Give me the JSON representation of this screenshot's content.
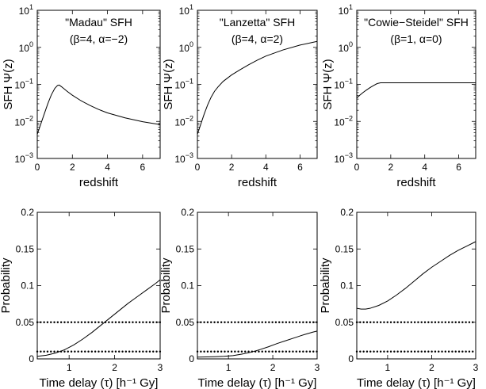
{
  "chart_data": [
    {
      "type": "line",
      "title": "\"Madau\" SFH",
      "subtitle": "(β=4, α=−2)",
      "xlabel": "redshift",
      "ylabel": "SFH Ψ(z)",
      "yscale": "log",
      "xlim": [
        0,
        7
      ],
      "ylim": [
        0.001,
        10
      ],
      "xticks": [
        0,
        2,
        4,
        6
      ],
      "xtick_labels": [
        "0",
        "2",
        "4",
        "6"
      ],
      "yticks": [
        0.001,
        0.01,
        0.1,
        1,
        10
      ],
      "ytick_labels": [
        [
          "10",
          "−3"
        ],
        [
          "10",
          "−2"
        ],
        [
          "10",
          "−1"
        ],
        [
          "10",
          "0"
        ],
        [
          "10",
          "1"
        ]
      ],
      "series": [
        {
          "name": "SFH",
          "x": [
            0,
            0.2,
            0.4,
            0.6,
            0.8,
            1.0,
            1.15,
            1.25,
            1.4,
            1.7,
            2.0,
            2.5,
            3.0,
            3.5,
            4.0,
            5.0,
            6.0,
            7.0
          ],
          "y": [
            0.0045,
            0.0085,
            0.016,
            0.03,
            0.052,
            0.078,
            0.093,
            0.096,
            0.085,
            0.065,
            0.051,
            0.036,
            0.027,
            0.021,
            0.017,
            0.0125,
            0.0098,
            0.0082
          ]
        }
      ],
      "hlines": []
    },
    {
      "type": "line",
      "title": "\"Lanzetta\" SFH",
      "subtitle": "(β=4, α=2)",
      "xlabel": "redshift",
      "ylabel": "SFH Ψ(z)",
      "yscale": "log",
      "xlim": [
        0,
        7
      ],
      "ylim": [
        0.001,
        10
      ],
      "xticks": [
        0,
        2,
        4,
        6
      ],
      "xtick_labels": [
        "0",
        "2",
        "4",
        "6"
      ],
      "yticks": [
        0.001,
        0.01,
        0.1,
        1,
        10
      ],
      "ytick_labels": [
        [
          "10",
          "−3"
        ],
        [
          "10",
          "−2"
        ],
        [
          "10",
          "−1"
        ],
        [
          "10",
          "0"
        ],
        [
          "10",
          "1"
        ]
      ],
      "series": [
        {
          "name": "SFH",
          "x": [
            0,
            0.2,
            0.4,
            0.6,
            0.8,
            1.0,
            1.2,
            1.5,
            2.0,
            2.5,
            3.0,
            3.5,
            4.0,
            5.0,
            6.0,
            7.0
          ],
          "y": [
            0.0045,
            0.0085,
            0.016,
            0.028,
            0.045,
            0.065,
            0.085,
            0.12,
            0.18,
            0.25,
            0.34,
            0.45,
            0.58,
            0.85,
            1.15,
            1.45
          ]
        }
      ],
      "hlines": []
    },
    {
      "type": "line",
      "title": "\"Cowie−Steidel\" SFH",
      "subtitle": "(β=1, α=0)",
      "xlabel": "redshift",
      "ylabel": "SFH Ψ(z)",
      "yscale": "log",
      "xlim": [
        0,
        7
      ],
      "ylim": [
        0.001,
        10
      ],
      "xticks": [
        0,
        2,
        4,
        6
      ],
      "xtick_labels": [
        "0",
        "2",
        "4",
        "6"
      ],
      "yticks": [
        0.001,
        0.01,
        0.1,
        1,
        10
      ],
      "ytick_labels": [
        [
          "10",
          "−3"
        ],
        [
          "10",
          "−2"
        ],
        [
          "10",
          "−1"
        ],
        [
          "10",
          "0"
        ],
        [
          "10",
          "1"
        ]
      ],
      "series": [
        {
          "name": "SFH",
          "x": [
            0,
            0.2,
            0.4,
            0.6,
            0.8,
            1.0,
            1.2,
            1.4,
            2.0,
            3.0,
            4.0,
            5.0,
            6.0,
            7.0
          ],
          "y": [
            0.043,
            0.052,
            0.062,
            0.072,
            0.083,
            0.094,
            0.105,
            0.11,
            0.11,
            0.11,
            0.11,
            0.11,
            0.11,
            0.11
          ]
        }
      ],
      "hlines": []
    },
    {
      "type": "line",
      "xlabel": "Time delay (τ) [h⁻¹ Gy]",
      "ylabel": "Probability",
      "yscale": "linear",
      "xlim": [
        0.3,
        3
      ],
      "ylim": [
        0,
        0.2
      ],
      "xticks": [
        1,
        2,
        3
      ],
      "xtick_labels": [
        "1",
        "2",
        "3"
      ],
      "yticks": [
        0,
        0.05,
        0.1,
        0.15,
        0.2
      ],
      "ytick_labels": [
        "0",
        "0.05",
        "0.1",
        "0.15",
        "0.2"
      ],
      "series": [
        {
          "name": "Probability",
          "x": [
            0.3,
            0.5,
            0.7,
            0.9,
            1.1,
            1.3,
            1.5,
            1.7,
            1.9,
            2.1,
            2.3,
            2.5,
            2.7,
            2.9,
            3.0
          ],
          "y": [
            0.0035,
            0.005,
            0.008,
            0.0125,
            0.019,
            0.027,
            0.036,
            0.046,
            0.056,
            0.066,
            0.076,
            0.085,
            0.094,
            0.103,
            0.108
          ]
        }
      ],
      "hlines": [
        0.05,
        0.01
      ]
    },
    {
      "type": "line",
      "xlabel": "Time delay (τ) [h⁻¹ Gy]",
      "ylabel": "Probability",
      "yscale": "linear",
      "xlim": [
        0.3,
        3
      ],
      "ylim": [
        0,
        0.2
      ],
      "xticks": [
        1,
        2,
        3
      ],
      "xtick_labels": [
        "1",
        "2",
        "3"
      ],
      "yticks": [
        0,
        0.05,
        0.1,
        0.15,
        0.2
      ],
      "ytick_labels": [
        "0",
        "0.05",
        "0.1",
        "0.15",
        "0.2"
      ],
      "series": [
        {
          "name": "Probability",
          "x": [
            0.3,
            0.5,
            0.7,
            0.9,
            1.1,
            1.3,
            1.5,
            1.7,
            1.9,
            2.1,
            2.3,
            2.5,
            2.7,
            2.9,
            3.0
          ],
          "y": [
            0.0025,
            0.0027,
            0.003,
            0.0035,
            0.0045,
            0.0065,
            0.009,
            0.0125,
            0.0165,
            0.021,
            0.025,
            0.029,
            0.033,
            0.0365,
            0.038
          ]
        }
      ],
      "hlines": [
        0.05,
        0.01
      ]
    },
    {
      "type": "line",
      "xlabel": "Time delay (τ) [h⁻¹ Gy]",
      "ylabel": "Probability",
      "yscale": "linear",
      "xlim": [
        0.3,
        3
      ],
      "ylim": [
        0,
        0.2
      ],
      "xticks": [
        1,
        2,
        3
      ],
      "xtick_labels": [
        "1",
        "2",
        "3"
      ],
      "yticks": [
        0,
        0.05,
        0.1,
        0.15,
        0.2
      ],
      "ytick_labels": [
        "0",
        "0.05",
        "0.1",
        "0.15",
        "0.2"
      ],
      "series": [
        {
          "name": "Probability",
          "x": [
            0.3,
            0.4,
            0.5,
            0.6,
            0.8,
            1.0,
            1.2,
            1.4,
            1.6,
            1.8,
            2.0,
            2.2,
            2.4,
            2.6,
            2.8,
            3.0
          ],
          "y": [
            0.069,
            0.068,
            0.068,
            0.069,
            0.073,
            0.079,
            0.087,
            0.096,
            0.106,
            0.116,
            0.125,
            0.133,
            0.141,
            0.148,
            0.154,
            0.16
          ]
        }
      ],
      "hlines": [
        0.05,
        0.01
      ]
    }
  ]
}
